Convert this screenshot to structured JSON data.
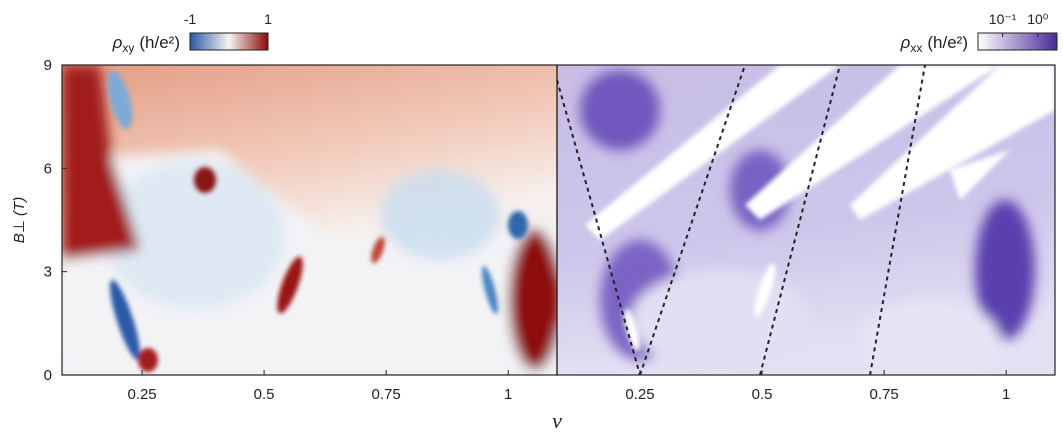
{
  "figure": {
    "xlabel": "ν",
    "ylabel": "B⊥ (T)"
  },
  "chart_data": [
    {
      "type": "heatmap",
      "colorbar": {
        "symbol": "ρ",
        "subscript": "xy",
        "unit": "(h/e²)",
        "colors": [
          "#2a5aa8",
          "#f7f3f0",
          "#8b0a0a"
        ],
        "lim": [
          -1,
          1
        ],
        "ticks": [
          -1,
          1
        ],
        "log": false
      },
      "xlim": [
        0.086,
        1.1
      ],
      "xticks": [
        0.25,
        0.5,
        0.75,
        1
      ],
      "ylim": [
        0,
        9
      ],
      "yticks": [
        0,
        3,
        6,
        9
      ]
    },
    {
      "type": "heatmap",
      "colorbar": {
        "symbol": "ρ",
        "subscript": "xx",
        "unit": "(h/e²)",
        "colors": [
          "#ffffff",
          "#4b2a9a"
        ],
        "lim": [
          0.02,
          3.5
        ],
        "ticks": [
          {
            "value": 0.1,
            "label": "10⁻¹"
          },
          {
            "value": 1,
            "label": "10⁰"
          }
        ],
        "log": true
      },
      "xlim": [
        0.08,
        1.1
      ],
      "xticks": [
        0.25,
        0.5,
        0.75,
        1
      ],
      "ylim": [
        0,
        9
      ]
    }
  ]
}
